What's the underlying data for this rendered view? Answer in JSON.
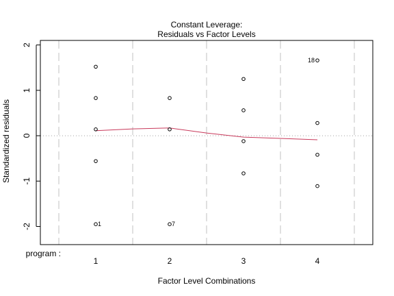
{
  "chart_data": {
    "type": "scatter",
    "title": "Constant Leverage:",
    "subtitle": "Residuals vs Factor Levels",
    "xlabel": "Factor Level Combinations",
    "ylabel": "Standardized residuals",
    "factor_label": "program :",
    "xlim": [
      0.25,
      4.75
    ],
    "ylim": [
      -2.4,
      2.1
    ],
    "x_ticks": [
      1,
      2,
      3,
      4
    ],
    "x_tick_labels": [
      "1",
      "2",
      "3",
      "4"
    ],
    "y_ticks": [
      -2,
      -1,
      0,
      1,
      2
    ],
    "y_tick_labels": [
      "-2",
      "-1",
      "0",
      "1",
      "2"
    ],
    "group_separators": [
      0.5,
      1.5,
      2.5,
      3.5,
      4.5
    ],
    "reference_line": 0,
    "points": [
      {
        "x": 1,
        "y": 1.52
      },
      {
        "x": 1,
        "y": 0.83
      },
      {
        "x": 1,
        "y": 0.14
      },
      {
        "x": 1,
        "y": -0.56
      },
      {
        "x": 1,
        "y": -1.95,
        "label": "1"
      },
      {
        "x": 2,
        "y": 0.83
      },
      {
        "x": 2,
        "y": 0.14
      },
      {
        "x": 2,
        "y": -1.95,
        "label": "7"
      },
      {
        "x": 3,
        "y": 1.25
      },
      {
        "x": 3,
        "y": 0.56
      },
      {
        "x": 3,
        "y": -0.12
      },
      {
        "x": 3,
        "y": -0.83
      },
      {
        "x": 4,
        "y": 1.66,
        "label": "18"
      },
      {
        "x": 4,
        "y": 0.28
      },
      {
        "x": 4,
        "y": -0.42
      },
      {
        "x": 4,
        "y": -1.11
      }
    ],
    "smooth_line": {
      "x": [
        1,
        1.5,
        2,
        2.5,
        3,
        3.5,
        4
      ],
      "y": [
        0.11,
        0.15,
        0.17,
        0.06,
        -0.03,
        -0.06,
        -0.09
      ]
    },
    "colors": {
      "points": "#000000",
      "smooth": "#c8385a",
      "separators": "#c0c0c0",
      "reference": "#a0a0a0",
      "axes": "#000000"
    }
  }
}
